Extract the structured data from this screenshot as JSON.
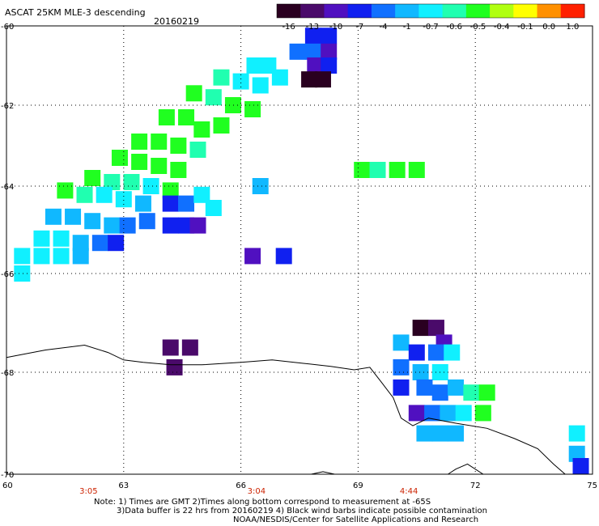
{
  "header": {
    "title": "ASCAT 25KM MLE-3 descending",
    "date": "20160219"
  },
  "colorbar": {
    "labels": [
      "-16",
      "-13",
      "-10",
      "-7",
      "-4",
      "-1",
      "-0.7",
      "-0.6",
      "-0.5",
      "-0.4",
      "-0.1",
      "0.0",
      "1.0"
    ],
    "colors": [
      "#2a0020",
      "#4a0a6a",
      "#5010c0",
      "#1020f0",
      "#1070ff",
      "#10b8ff",
      "#10f0ff",
      "#20ffb0",
      "#20ff20",
      "#b0ff10",
      "#ffff00",
      "#ff9000",
      "#ff2000"
    ]
  },
  "axes": {
    "lon_ticks": [
      "60",
      "63",
      "66",
      "69",
      "72",
      "75"
    ],
    "lat_ticks": [
      "-60",
      "-62",
      "-64",
      "-66",
      "-68",
      "-70"
    ],
    "times": [
      {
        "label": "3:05",
        "lon": 62.1
      },
      {
        "label": "3:04",
        "lon": 66.4
      },
      {
        "label": "4:44",
        "lon": 70.3
      }
    ]
  },
  "notes": {
    "line1": "Note: 1) Times are GMT 2)Times along bottom correspond to measurement at -65S",
    "line2": "3)Data buffer is 22 hrs from 20160219 4) Black wind barbs indicate possible contamination",
    "line3": "NOAA/NESDIS/Center for Satellite Applications and Research"
  },
  "map_data": {
    "cells": [
      {
        "lon": 67.85,
        "lat": -60.25,
        "v": "#1020f0"
      },
      {
        "lon": 68.25,
        "lat": -60.25,
        "v": "#1020f0"
      },
      {
        "lon": 67.85,
        "lat": -60.65,
        "v": "#1070ff"
      },
      {
        "lon": 68.25,
        "lat": -60.65,
        "v": "#5010c0"
      },
      {
        "lon": 67.45,
        "lat": -60.65,
        "v": "#1070ff"
      },
      {
        "lon": 67.9,
        "lat": -61.0,
        "v": "#5010c0"
      },
      {
        "lon": 68.25,
        "lat": -61.0,
        "v": "#1020f0"
      },
      {
        "lon": 67.75,
        "lat": -61.35,
        "v": "#2a0020"
      },
      {
        "lon": 68.1,
        "lat": -61.35,
        "v": "#2a0020"
      },
      {
        "lon": 66.35,
        "lat": -61.0,
        "v": "#10f0ff"
      },
      {
        "lon": 66.7,
        "lat": -61.0,
        "v": "#10f0ff"
      },
      {
        "lon": 67.0,
        "lat": -61.3,
        "v": "#10f0ff"
      },
      {
        "lon": 65.5,
        "lat": -61.3,
        "v": "#20ffb0"
      },
      {
        "lon": 66.0,
        "lat": -61.4,
        "v": "#10f0ff"
      },
      {
        "lon": 66.5,
        "lat": -61.5,
        "v": "#10f0ff"
      },
      {
        "lon": 64.8,
        "lat": -61.7,
        "v": "#20ff20"
      },
      {
        "lon": 65.3,
        "lat": -61.8,
        "v": "#20ffb0"
      },
      {
        "lon": 65.8,
        "lat": -62.0,
        "v": "#20ff20"
      },
      {
        "lon": 66.3,
        "lat": -62.1,
        "v": "#20ff20"
      },
      {
        "lon": 64.1,
        "lat": -62.3,
        "v": "#20ff20"
      },
      {
        "lon": 64.6,
        "lat": -62.3,
        "v": "#20ff20"
      },
      {
        "lon": 65.0,
        "lat": -62.6,
        "v": "#20ff20"
      },
      {
        "lon": 65.5,
        "lat": -62.5,
        "v": "#20ff20"
      },
      {
        "lon": 63.4,
        "lat": -62.9,
        "v": "#20ff20"
      },
      {
        "lon": 63.9,
        "lat": -62.9,
        "v": "#20ff20"
      },
      {
        "lon": 64.4,
        "lat": -63.0,
        "v": "#20ff20"
      },
      {
        "lon": 64.9,
        "lat": -63.1,
        "v": "#20ffb0"
      },
      {
        "lon": 62.9,
        "lat": -63.3,
        "v": "#20ff20"
      },
      {
        "lon": 63.4,
        "lat": -63.4,
        "v": "#20ff20"
      },
      {
        "lon": 63.9,
        "lat": -63.5,
        "v": "#20ff20"
      },
      {
        "lon": 64.4,
        "lat": -63.6,
        "v": "#20ff20"
      },
      {
        "lon": 62.2,
        "lat": -63.8,
        "v": "#20ff20"
      },
      {
        "lon": 62.7,
        "lat": -63.9,
        "v": "#20ffb0"
      },
      {
        "lon": 63.2,
        "lat": -63.9,
        "v": "#20ffb0"
      },
      {
        "lon": 63.7,
        "lat": -64.0,
        "v": "#10f0ff"
      },
      {
        "lon": 64.2,
        "lat": -64.1,
        "v": "#20ff20"
      },
      {
        "lon": 61.5,
        "lat": -64.1,
        "v": "#20ff20"
      },
      {
        "lon": 62.0,
        "lat": -64.2,
        "v": "#20ffb0"
      },
      {
        "lon": 62.5,
        "lat": -64.2,
        "v": "#10f0ff"
      },
      {
        "lon": 63.0,
        "lat": -64.3,
        "v": "#10f0ff"
      },
      {
        "lon": 63.5,
        "lat": -64.4,
        "v": "#10b8ff"
      },
      {
        "lon": 64.2,
        "lat": -64.4,
        "v": "#1020f0"
      },
      {
        "lon": 64.6,
        "lat": -64.4,
        "v": "#1070ff"
      },
      {
        "lon": 65.0,
        "lat": -64.2,
        "v": "#10f0ff"
      },
      {
        "lon": 65.3,
        "lat": -64.5,
        "v": "#10f0ff"
      },
      {
        "lon": 64.2,
        "lat": -64.9,
        "v": "#1020f0"
      },
      {
        "lon": 64.6,
        "lat": -64.9,
        "v": "#1020f0"
      },
      {
        "lon": 64.9,
        "lat": -64.9,
        "v": "#5010c0"
      },
      {
        "lon": 63.6,
        "lat": -64.8,
        "v": "#1070ff"
      },
      {
        "lon": 61.2,
        "lat": -64.7,
        "v": "#10b8ff"
      },
      {
        "lon": 61.7,
        "lat": -64.7,
        "v": "#10b8ff"
      },
      {
        "lon": 62.2,
        "lat": -64.8,
        "v": "#10b8ff"
      },
      {
        "lon": 62.7,
        "lat": -64.9,
        "v": "#10b8ff"
      },
      {
        "lon": 63.1,
        "lat": -64.9,
        "v": "#1070ff"
      },
      {
        "lon": 60.9,
        "lat": -65.2,
        "v": "#10f0ff"
      },
      {
        "lon": 61.4,
        "lat": -65.2,
        "v": "#10f0ff"
      },
      {
        "lon": 61.9,
        "lat": -65.3,
        "v": "#10b8ff"
      },
      {
        "lon": 62.4,
        "lat": -65.3,
        "v": "#1070ff"
      },
      {
        "lon": 62.8,
        "lat": -65.3,
        "v": "#1020f0"
      },
      {
        "lon": 60.4,
        "lat": -65.6,
        "v": "#10f0ff"
      },
      {
        "lon": 60.9,
        "lat": -65.6,
        "v": "#10f0ff"
      },
      {
        "lon": 61.4,
        "lat": -65.6,
        "v": "#10f0ff"
      },
      {
        "lon": 61.9,
        "lat": -65.6,
        "v": "#10b8ff"
      },
      {
        "lon": 60.4,
        "lat": -66.0,
        "v": "#10f0ff"
      },
      {
        "lon": 66.5,
        "lat": -64.0,
        "v": "#10b8ff"
      },
      {
        "lon": 66.3,
        "lat": -65.6,
        "v": "#5010c0"
      },
      {
        "lon": 67.1,
        "lat": -65.6,
        "v": "#1020f0"
      },
      {
        "lon": 69.1,
        "lat": -63.6,
        "v": "#20ff20"
      },
      {
        "lon": 69.5,
        "lat": -63.6,
        "v": "#20ffb0"
      },
      {
        "lon": 70.0,
        "lat": -63.6,
        "v": "#20ff20"
      },
      {
        "lon": 70.5,
        "lat": -63.6,
        "v": "#20ff20"
      },
      {
        "lon": 64.2,
        "lat": -67.5,
        "v": "#4a0a6a"
      },
      {
        "lon": 64.7,
        "lat": -67.5,
        "v": "#4a0a6a"
      },
      {
        "lon": 64.3,
        "lat": -67.9,
        "v": "#4a0a6a"
      },
      {
        "lon": 70.6,
        "lat": -67.1,
        "v": "#2a0020"
      },
      {
        "lon": 71.0,
        "lat": -67.1,
        "v": "#4a0a6a"
      },
      {
        "lon": 71.2,
        "lat": -67.4,
        "v": "#5010c0"
      },
      {
        "lon": 70.1,
        "lat": -67.4,
        "v": "#10b8ff"
      },
      {
        "lon": 70.5,
        "lat": -67.6,
        "v": "#1020f0"
      },
      {
        "lon": 71.0,
        "lat": -67.6,
        "v": "#1070ff"
      },
      {
        "lon": 71.4,
        "lat": -67.6,
        "v": "#10f0ff"
      },
      {
        "lon": 70.1,
        "lat": -67.9,
        "v": "#1070ff"
      },
      {
        "lon": 70.6,
        "lat": -68.0,
        "v": "#10b8ff"
      },
      {
        "lon": 71.1,
        "lat": -68.0,
        "v": "#10f0ff"
      },
      {
        "lon": 70.1,
        "lat": -68.3,
        "v": "#1020f0"
      },
      {
        "lon": 70.7,
        "lat": -68.3,
        "v": "#1070ff"
      },
      {
        "lon": 71.1,
        "lat": -68.4,
        "v": "#1070ff"
      },
      {
        "lon": 71.5,
        "lat": -68.3,
        "v": "#10b8ff"
      },
      {
        "lon": 71.9,
        "lat": -68.4,
        "v": "#20ffb0"
      },
      {
        "lon": 72.3,
        "lat": -68.4,
        "v": "#20ff20"
      },
      {
        "lon": 70.5,
        "lat": -68.8,
        "v": "#5010c0"
      },
      {
        "lon": 70.9,
        "lat": -68.8,
        "v": "#1070ff"
      },
      {
        "lon": 71.3,
        "lat": -68.8,
        "v": "#10b8ff"
      },
      {
        "lon": 71.7,
        "lat": -68.8,
        "v": "#10f0ff"
      },
      {
        "lon": 72.2,
        "lat": -68.8,
        "v": "#20ff20"
      },
      {
        "lon": 70.7,
        "lat": -69.2,
        "v": "#10b8ff"
      },
      {
        "lon": 71.1,
        "lat": -69.2,
        "v": "#10b8ff"
      },
      {
        "lon": 71.5,
        "lat": -69.2,
        "v": "#10b8ff"
      },
      {
        "lon": 74.6,
        "lat": -69.2,
        "v": "#10f0ff"
      },
      {
        "lon": 74.6,
        "lat": -69.6,
        "v": "#10b8ff"
      },
      {
        "lon": 74.7,
        "lat": -69.9,
        "v": "#1020f0"
      }
    ],
    "coastline": [
      [
        60.0,
        -67.7
      ],
      [
        61.0,
        -67.55
      ],
      [
        62.0,
        -67.45
      ],
      [
        62.6,
        -67.6
      ],
      [
        63.0,
        -67.75
      ],
      [
        63.5,
        -67.8
      ],
      [
        64.2,
        -67.85
      ],
      [
        65.0,
        -67.85
      ],
      [
        66.0,
        -67.8
      ],
      [
        66.8,
        -67.75
      ],
      [
        67.6,
        -67.82
      ],
      [
        68.3,
        -67.88
      ],
      [
        68.9,
        -67.95
      ],
      [
        69.3,
        -67.9
      ],
      [
        69.6,
        -68.2
      ],
      [
        69.9,
        -68.5
      ],
      [
        70.1,
        -68.9
      ],
      [
        70.4,
        -69.05
      ],
      [
        70.8,
        -68.9
      ],
      [
        71.5,
        -69.0
      ],
      [
        72.3,
        -69.1
      ],
      [
        73.0,
        -69.3
      ],
      [
        73.6,
        -69.5
      ],
      [
        74.0,
        -69.8
      ],
      [
        74.3,
        -70.1
      ],
      [
        74.6,
        -70.1
      ],
      [
        75.0,
        -70.1
      ]
    ],
    "coastline2": [
      [
        67.8,
        -70.2
      ],
      [
        68.1,
        -69.95
      ],
      [
        68.4,
        -70.05
      ],
      [
        68.6,
        -70.2
      ]
    ],
    "coastline3": [
      [
        71.3,
        -70.2
      ],
      [
        71.5,
        -69.9
      ],
      [
        71.8,
        -69.8
      ],
      [
        72.2,
        -70.0
      ],
      [
        72.6,
        -70.1
      ]
    ]
  }
}
